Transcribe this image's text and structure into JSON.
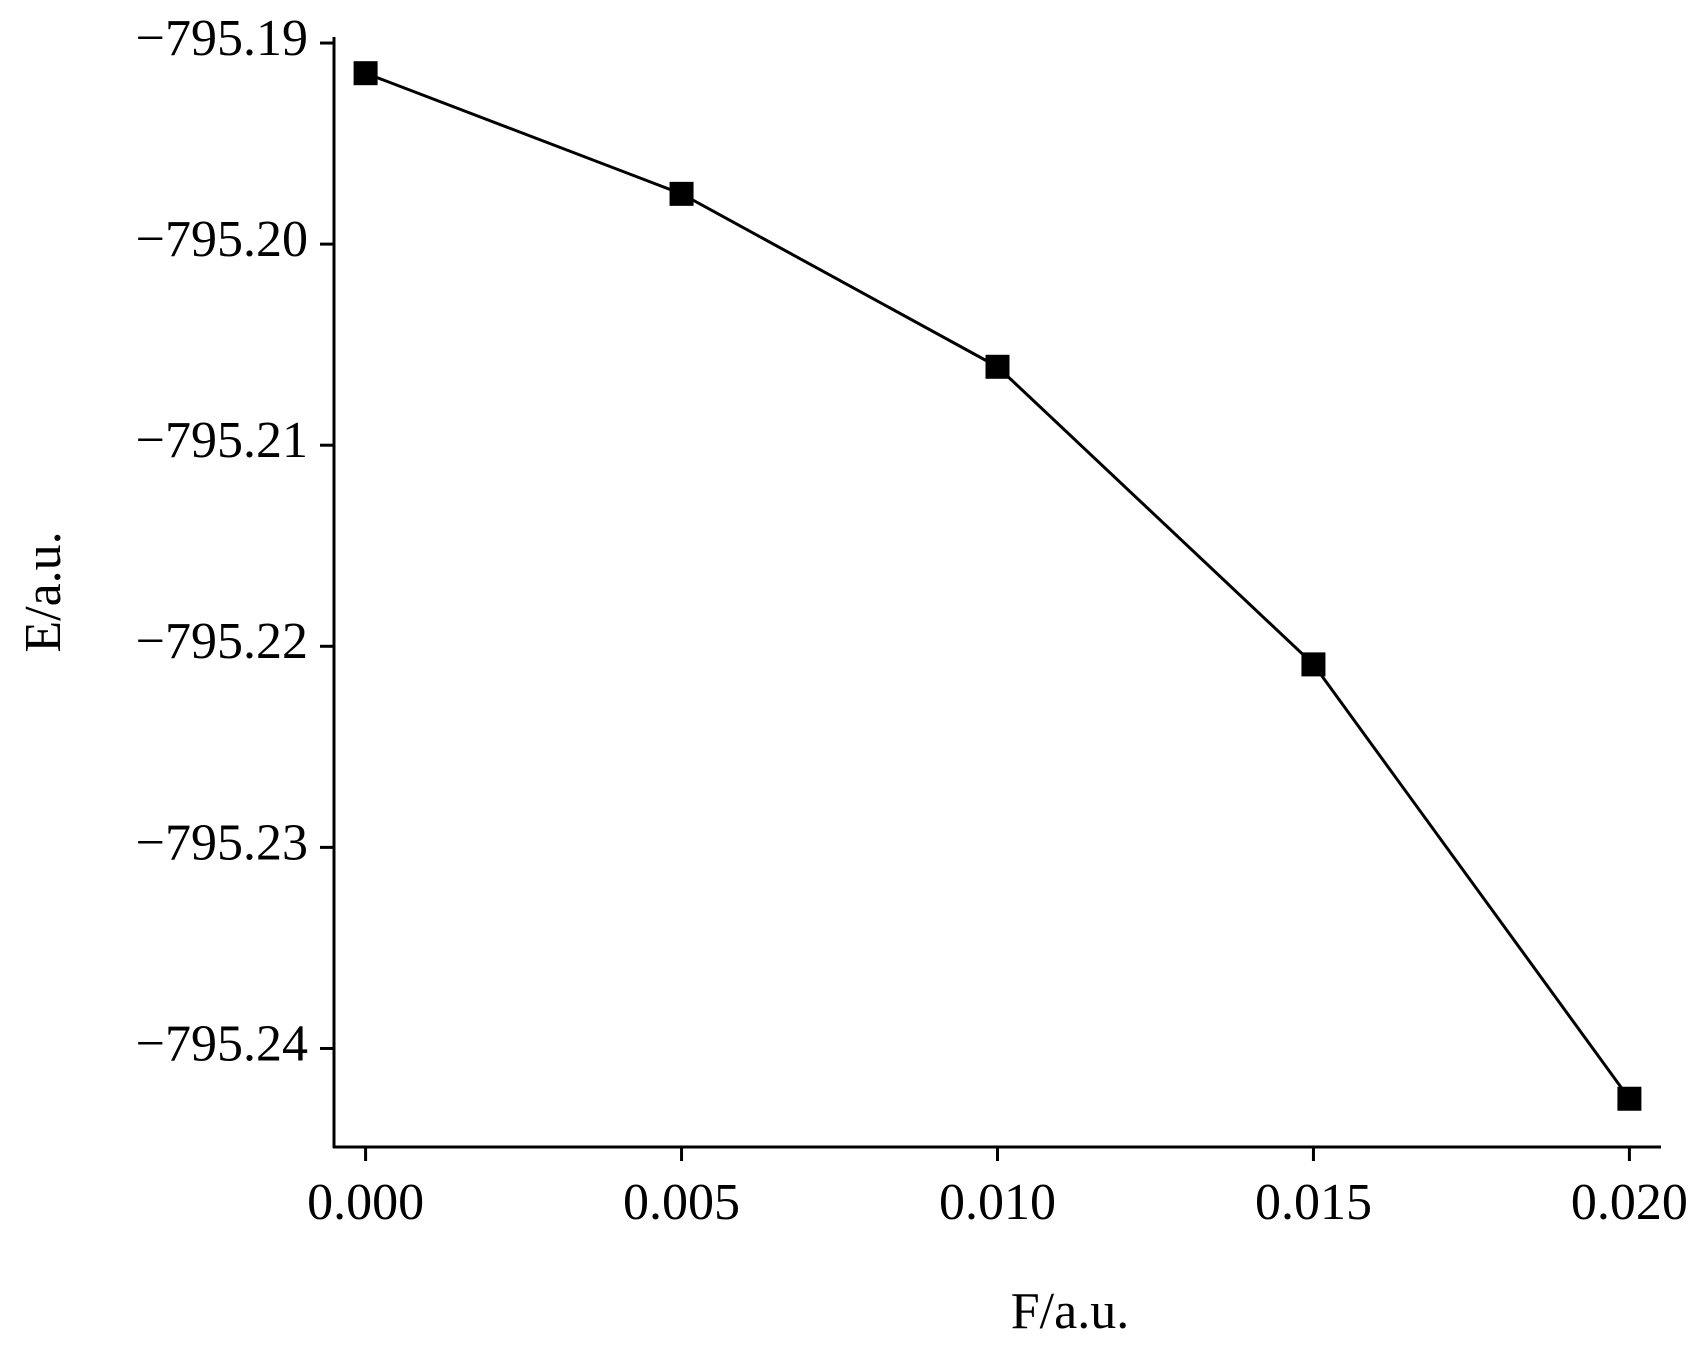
{
  "chart_data": {
    "type": "line",
    "x_label": "F/a.u.",
    "y_label": "E/a.u.",
    "x": [
      0,
      0.005,
      0.01,
      0.015,
      0.02
    ],
    "series": [
      {
        "color": "#000000",
        "values": [
          -795.1915,
          -795.1975,
          -795.2061,
          -795.2209,
          -795.2425
        ]
      }
    ],
    "xlim": [
      -0.0005,
      0.0205
    ],
    "xticks": [
      {
        "value": 0,
        "label": "0.000"
      },
      {
        "value": 0.005,
        "label": "0.005"
      },
      {
        "value": 0.01,
        "label": "0.010"
      },
      {
        "value": 0.015,
        "label": "0.015"
      },
      {
        "value": 0.02,
        "label": "0.020"
      }
    ],
    "ylim": [
      -795.2449,
      -795.1897
    ],
    "yticks": [
      {
        "value": -795.19,
        "label": "−795.19"
      },
      {
        "value": -795.2,
        "label": "−795.20"
      },
      {
        "value": -795.21,
        "label": "−795.21"
      },
      {
        "value": -795.22,
        "label": "−795.22"
      },
      {
        "value": -795.23,
        "label": "−795.23"
      },
      {
        "value": -795.24,
        "label": "−795.24"
      }
    ],
    "grid": false
  }
}
